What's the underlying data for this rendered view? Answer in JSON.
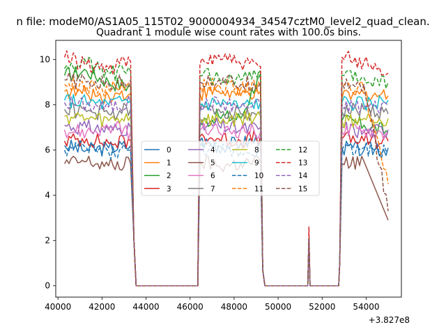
{
  "figure": {
    "suptitle": "n file: modeM0/AS1A05_115T02_9000004934_34547cztM0_level2_quad_clean.",
    "title": "Quadrant 1 module wise count rates with 100.0s bins.",
    "x_offset_label": "+3.827e8"
  },
  "chart_data": {
    "type": "line",
    "title": "Quadrant 1 module wise count rates with 100.0s bins.",
    "xlabel": "",
    "ylabel": "",
    "x_offset": "+3.827e8",
    "xlim": [
      39900,
      55600
    ],
    "ylim": [
      -0.5,
      10.85
    ],
    "x_ticks": [
      40000,
      42000,
      44000,
      46000,
      48000,
      50000,
      52000,
      54000
    ],
    "x_tick_labels": [
      "40000",
      "42000",
      "44000",
      "46000",
      "48000",
      "50000",
      "52000",
      "54000"
    ],
    "y_ticks": [
      0,
      2,
      4,
      6,
      8,
      10
    ],
    "y_tick_labels": [
      "0",
      "2",
      "4",
      "6",
      "8",
      "10"
    ],
    "grid": false,
    "legend_placement": "center",
    "legend_columns": 4,
    "x": [
      40300,
      41300,
      42300,
      43300,
      43450,
      43550,
      46350,
      46450,
      47300,
      48300,
      49200,
      49300,
      49400,
      51350,
      51400,
      51450,
      51500,
      52750,
      52800,
      52900,
      53900,
      55000
    ],
    "series": [
      {
        "name": "0",
        "color": "#1f77b4",
        "dash": "solid",
        "values": [
          6.2,
          6.0,
          6.1,
          6.2,
          2.0,
          0,
          0,
          6.4,
          6.2,
          6.3,
          6.5,
          0.7,
          0,
          0,
          2.1,
          0,
          0,
          0,
          1.0,
          6.1,
          6.0,
          6.1
        ]
      },
      {
        "name": "1",
        "color": "#ff7f0e",
        "dash": "solid",
        "values": [
          8.6,
          8.5,
          8.4,
          8.5,
          2.0,
          0,
          0,
          8.5,
          8.6,
          8.4,
          8.6,
          0.7,
          0,
          0,
          2.1,
          0,
          0,
          0,
          1.0,
          8.3,
          8.5,
          8.4
        ]
      },
      {
        "name": "2",
        "color": "#2ca02c",
        "dash": "solid",
        "values": [
          9.3,
          9.5,
          9.0,
          8.8,
          2.0,
          0,
          0,
          7.2,
          7.5,
          7.4,
          9.5,
          0.7,
          0,
          0,
          2.1,
          0,
          0,
          0,
          1.0,
          7.3,
          7.1,
          6.8
        ]
      },
      {
        "name": "3",
        "color": "#d62728",
        "dash": "solid",
        "values": [
          6.4,
          6.5,
          6.3,
          6.4,
          2.0,
          0,
          0,
          6.6,
          6.5,
          6.4,
          6.6,
          0.7,
          0,
          0,
          2.1,
          0,
          0,
          0,
          1.0,
          6.5,
          6.4,
          6.4
        ]
      },
      {
        "name": "4",
        "color": "#9467bd",
        "dash": "solid",
        "values": [
          7.1,
          7.0,
          6.9,
          7.0,
          2.0,
          0,
          0,
          7.0,
          7.1,
          6.9,
          7.0,
          0.7,
          0,
          0,
          2.1,
          0,
          0,
          0,
          1.0,
          7.0,
          6.8,
          6.9
        ]
      },
      {
        "name": "5",
        "color": "#8c564b",
        "dash": "solid",
        "values": [
          5.4,
          5.5,
          5.3,
          5.4,
          2.0,
          0,
          0,
          5.5,
          5.3,
          5.4,
          5.5,
          0.7,
          0,
          0,
          2.1,
          0,
          0,
          0,
          1.0,
          5.4,
          5.5,
          2.9
        ]
      },
      {
        "name": "6",
        "color": "#e377c2",
        "dash": "solid",
        "values": [
          6.9,
          6.8,
          7.0,
          6.8,
          2.0,
          0,
          0,
          6.9,
          6.8,
          6.9,
          6.8,
          0.7,
          0,
          0,
          2.1,
          0,
          0,
          0,
          1.0,
          6.8,
          6.9,
          6.7
        ]
      },
      {
        "name": "7",
        "color": "#7f7f7f",
        "dash": "solid",
        "values": [
          7.8,
          7.7,
          7.6,
          7.8,
          2.0,
          0,
          0,
          7.7,
          7.8,
          7.6,
          7.7,
          0.7,
          0,
          0,
          2.1,
          0,
          0,
          0,
          1.0,
          7.7,
          7.8,
          7.6
        ]
      },
      {
        "name": "8",
        "color": "#bcbd22",
        "dash": "solid",
        "values": [
          7.5,
          7.4,
          7.3,
          7.5,
          2.0,
          0,
          0,
          7.4,
          7.3,
          7.4,
          7.5,
          0.7,
          0,
          0,
          2.1,
          0,
          0,
          0,
          1.0,
          7.3,
          7.4,
          7.4
        ]
      },
      {
        "name": "9",
        "color": "#17becf",
        "dash": "solid",
        "values": [
          8.2,
          8.1,
          8.0,
          8.2,
          2.0,
          0,
          0,
          8.0,
          8.1,
          7.9,
          8.1,
          0.7,
          0,
          0,
          2.1,
          0,
          0,
          0,
          1.0,
          8.1,
          8.0,
          8.2
        ]
      },
      {
        "name": "10",
        "color": "#1f77b4",
        "dash": "dashed",
        "values": [
          6.0,
          6.1,
          5.9,
          6.0,
          2.0,
          0,
          0,
          6.1,
          6.0,
          5.9,
          6.1,
          0.7,
          0,
          0,
          2.1,
          0,
          0,
          0,
          1.0,
          6.0,
          6.1,
          5.9
        ]
      },
      {
        "name": "11",
        "color": "#ff7f0e",
        "dash": "dashed",
        "values": [
          8.9,
          8.8,
          8.7,
          8.9,
          2.0,
          0,
          0,
          8.8,
          8.9,
          8.7,
          8.8,
          0.7,
          0,
          0,
          2.1,
          0,
          0,
          0,
          1.0,
          8.8,
          8.7,
          4.5
        ]
      },
      {
        "name": "12",
        "color": "#2ca02c",
        "dash": "dashed",
        "values": [
          9.6,
          9.8,
          9.4,
          9.5,
          2.0,
          0,
          0,
          9.3,
          9.2,
          9.1,
          9.4,
          0.7,
          0,
          0,
          2.1,
          0,
          0,
          0,
          1.0,
          9.3,
          9.2,
          9.0
        ]
      },
      {
        "name": "13",
        "color": "#d62728",
        "dash": "dashed",
        "values": [
          10.1,
          9.8,
          9.6,
          9.9,
          2.0,
          0,
          0,
          9.8,
          10.2,
          9.8,
          9.7,
          0.7,
          0,
          0,
          2.6,
          0,
          0,
          0,
          1.0,
          10.1,
          9.9,
          9.4
        ]
      },
      {
        "name": "14",
        "color": "#9467bd",
        "dash": "dashed",
        "values": [
          8.1,
          8.0,
          7.9,
          8.1,
          2.0,
          0,
          0,
          8.0,
          8.1,
          7.9,
          8.0,
          0.7,
          0,
          0,
          2.1,
          0,
          0,
          0,
          1.0,
          8.0,
          7.9,
          8.0
        ]
      },
      {
        "name": "15",
        "color": "#8c564b",
        "dash": "dashed",
        "values": [
          9.1,
          9.0,
          8.9,
          9.1,
          2.0,
          0,
          0,
          9.0,
          9.1,
          8.9,
          9.0,
          0.7,
          0,
          0,
          2.1,
          0,
          0,
          0,
          1.0,
          9.0,
          8.9,
          3.3
        ]
      }
    ]
  }
}
